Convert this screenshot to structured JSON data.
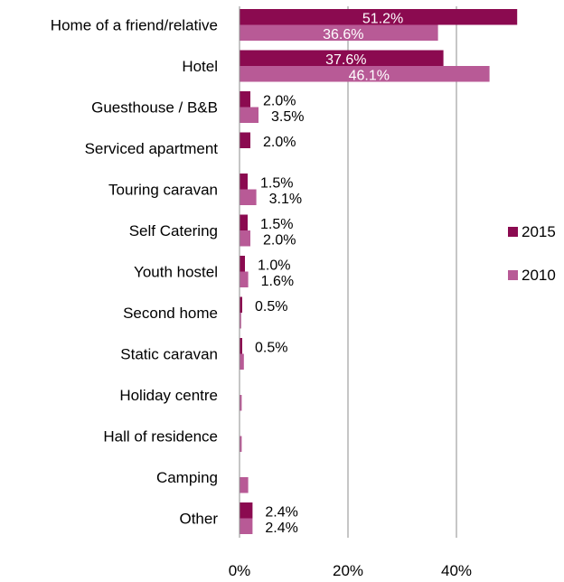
{
  "chart_data": {
    "type": "bar",
    "orientation": "horizontal",
    "title": "",
    "xlabel": "",
    "ylabel": "",
    "xlim": [
      0,
      50
    ],
    "x_ticks": [
      "0%",
      "20%",
      "40%"
    ],
    "x_tick_values": [
      0,
      20,
      40
    ],
    "grid": "vertical",
    "legend_position": "right",
    "categories": [
      "Home of a friend/relative",
      "Hotel",
      "Guesthouse / B&B",
      "Serviced apartment",
      "Touring caravan",
      "Self Catering",
      "Youth hostel",
      "Second home",
      "Static caravan",
      "Holiday centre",
      "Hall of residence",
      "Camping",
      "Other"
    ],
    "series": [
      {
        "name": "2015",
        "color": "#8b0a50",
        "values": [
          51.2,
          37.6,
          2.0,
          2.0,
          1.5,
          1.5,
          1.0,
          0.5,
          0.5,
          null,
          null,
          null,
          2.4
        ],
        "labels": [
          "51.2%",
          "37.6%",
          "2.0%",
          "2.0%",
          "1.5%",
          "1.5%",
          "1.0%",
          "0.5%",
          "0.5%",
          "",
          "",
          "",
          "2.4%"
        ]
      },
      {
        "name": "2010",
        "color": "#b85a96",
        "values": [
          36.6,
          46.1,
          3.5,
          null,
          3.1,
          2.0,
          1.6,
          0.3,
          0.8,
          0.4,
          0.4,
          1.6,
          2.4
        ],
        "labels": [
          "36.6%",
          "46.1%",
          "3.5%",
          "",
          "3.1%",
          "2.0%",
          "1.6%",
          "",
          "",
          "",
          "",
          "",
          "2.4%"
        ]
      }
    ]
  }
}
